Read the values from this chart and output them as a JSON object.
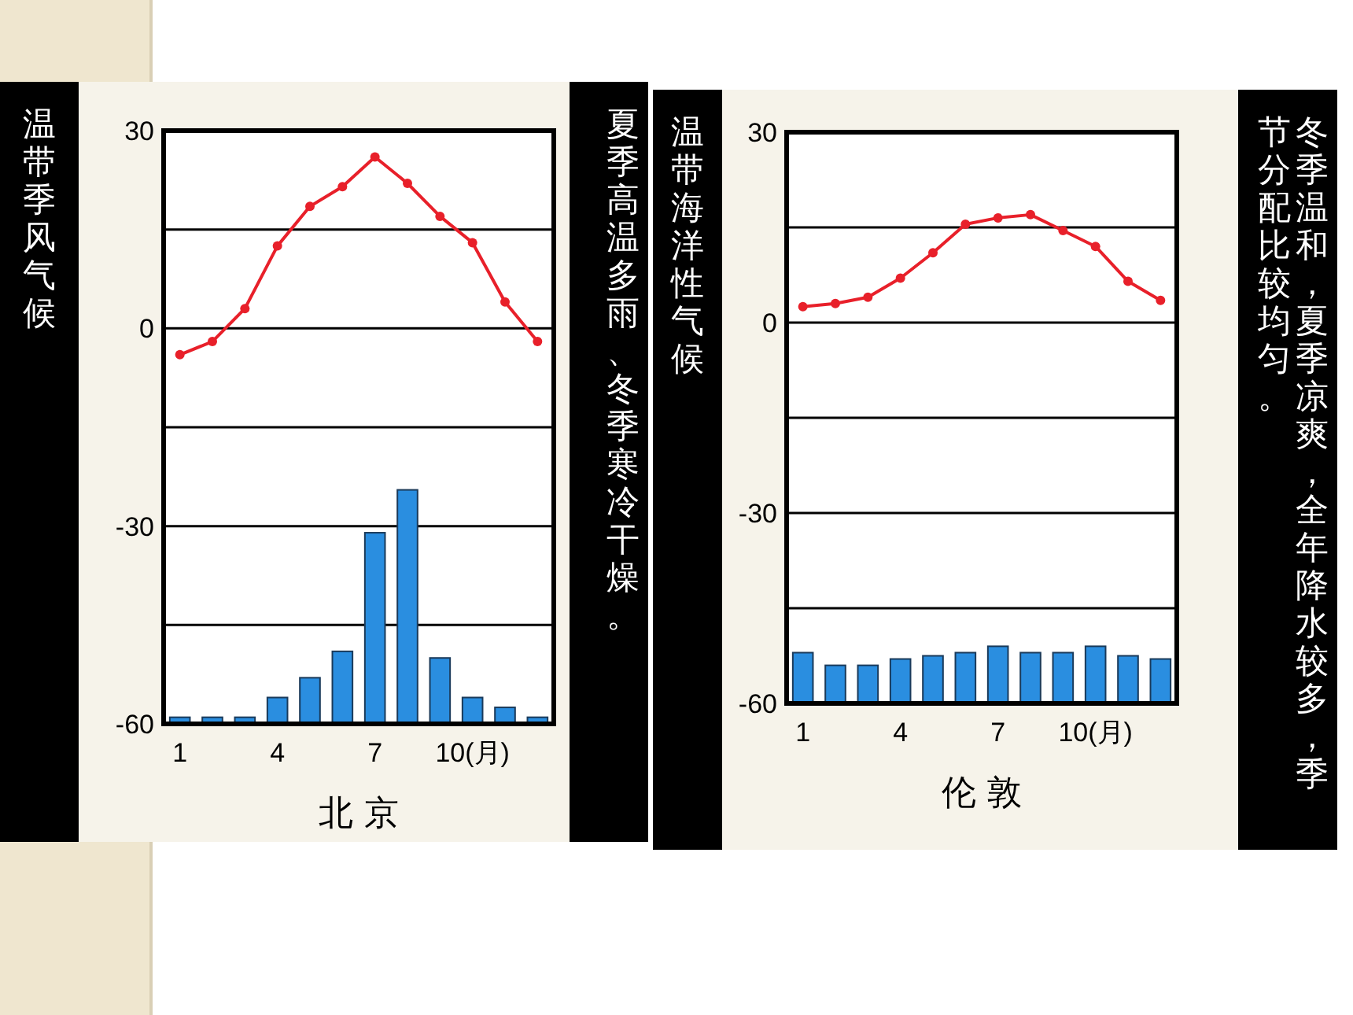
{
  "chart_data": [
    {
      "type": "line",
      "title": "温带季风气候",
      "annotations": [
        "夏季高温多雨、冬季寒冷干燥。"
      ],
      "xlabel": "北 京",
      "categories": [
        "1",
        null,
        null,
        "4",
        null,
        null,
        "7",
        null,
        null,
        "10(月)",
        null,
        null
      ],
      "ylim": [
        -60,
        30
      ],
      "yticks": [
        -60,
        {
          "value": -45,
          "label": null
        },
        -30,
        {
          "value": -15,
          "label": null
        },
        0,
        {
          "value": 15,
          "label": null
        },
        30
      ],
      "grid": "y",
      "series": [
        {
          "type": "bar",
          "color": "#2a8ee0",
          "base": [
            -60,
            -60,
            -60,
            -60,
            -60,
            -60,
            -60,
            -60,
            -60,
            -60,
            -60,
            -60
          ],
          "values": [
            1,
            1,
            1,
            4,
            7,
            11,
            29,
            35.5,
            10,
            4,
            2.5,
            1
          ]
        },
        {
          "type": "line",
          "color": "#e8202a",
          "marker": "circle",
          "values": [
            -4,
            -2,
            3,
            12.5,
            18.5,
            21.5,
            26,
            22,
            17,
            13,
            4,
            -2
          ]
        }
      ]
    },
    {
      "type": "line",
      "title": "温带海洋性气候",
      "annotations": [
        "冬季温和，夏季凉爽，全年降水较多，季",
        "节分配比较均匀。"
      ],
      "xlabel": "伦 敦",
      "categories": [
        "1",
        null,
        null,
        "4",
        null,
        null,
        "7",
        null,
        null,
        "10(月)",
        null,
        null
      ],
      "ylim": [
        -60,
        30
      ],
      "yticks": [
        -60,
        {
          "value": -45,
          "label": null
        },
        -30,
        {
          "value": -15,
          "label": null
        },
        0,
        {
          "value": 15,
          "label": null
        },
        30
      ],
      "grid": "y",
      "series": [
        {
          "type": "bar",
          "color": "#2a8ee0",
          "base": [
            -60,
            -60,
            -60,
            -60,
            -60,
            -60,
            -60,
            -60,
            -60,
            -60,
            -60,
            -60
          ],
          "values": [
            8,
            6,
            6,
            7,
            7.5,
            8,
            9,
            8,
            8,
            9,
            7.5,
            7
          ]
        },
        {
          "type": "line",
          "color": "#e8202a",
          "marker": "circle",
          "values": [
            2.5,
            3,
            4,
            7,
            11,
            15.5,
            16.5,
            17,
            14.5,
            12,
            6.5,
            3.5
          ]
        }
      ]
    }
  ]
}
